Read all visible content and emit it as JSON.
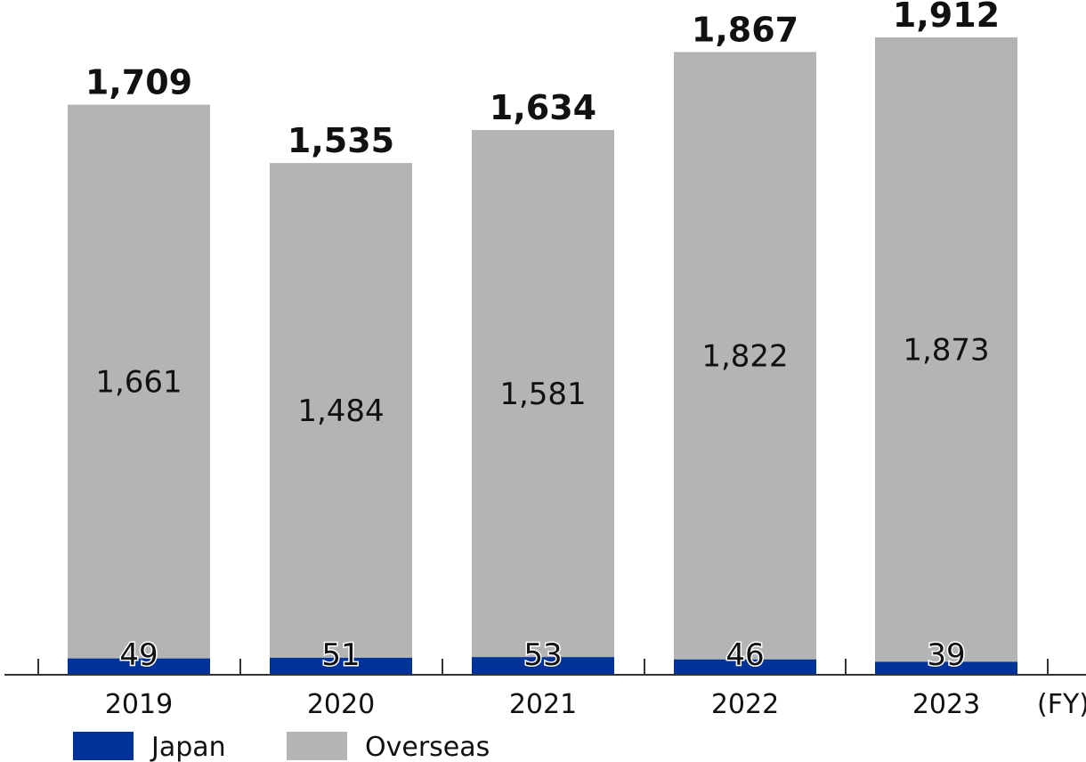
{
  "chart_data": {
    "type": "bar",
    "stacked": true,
    "categories": [
      "2019",
      "2020",
      "2021",
      "2022",
      "2023"
    ],
    "series": [
      {
        "name": "Japan",
        "values": [
          49,
          51,
          53,
          46,
          39
        ],
        "color": "#003399"
      },
      {
        "name": "Overseas",
        "values": [
          1661,
          1484,
          1581,
          1822,
          1873
        ],
        "color": "#b3b4b4"
      }
    ],
    "totals": [
      "1,709",
      "1,535",
      "1,634",
      "1,867",
      "1,912"
    ],
    "japan_labels": [
      "49",
      "51",
      "53",
      "46",
      "39"
    ],
    "overseas_labels": [
      "1,661",
      "1,484",
      "1,581",
      "1,822",
      "1,873"
    ],
    "x_unit": "(FY)",
    "ylim": [
      0,
      1912
    ],
    "grid": false,
    "legend_position": "bottom-left"
  }
}
